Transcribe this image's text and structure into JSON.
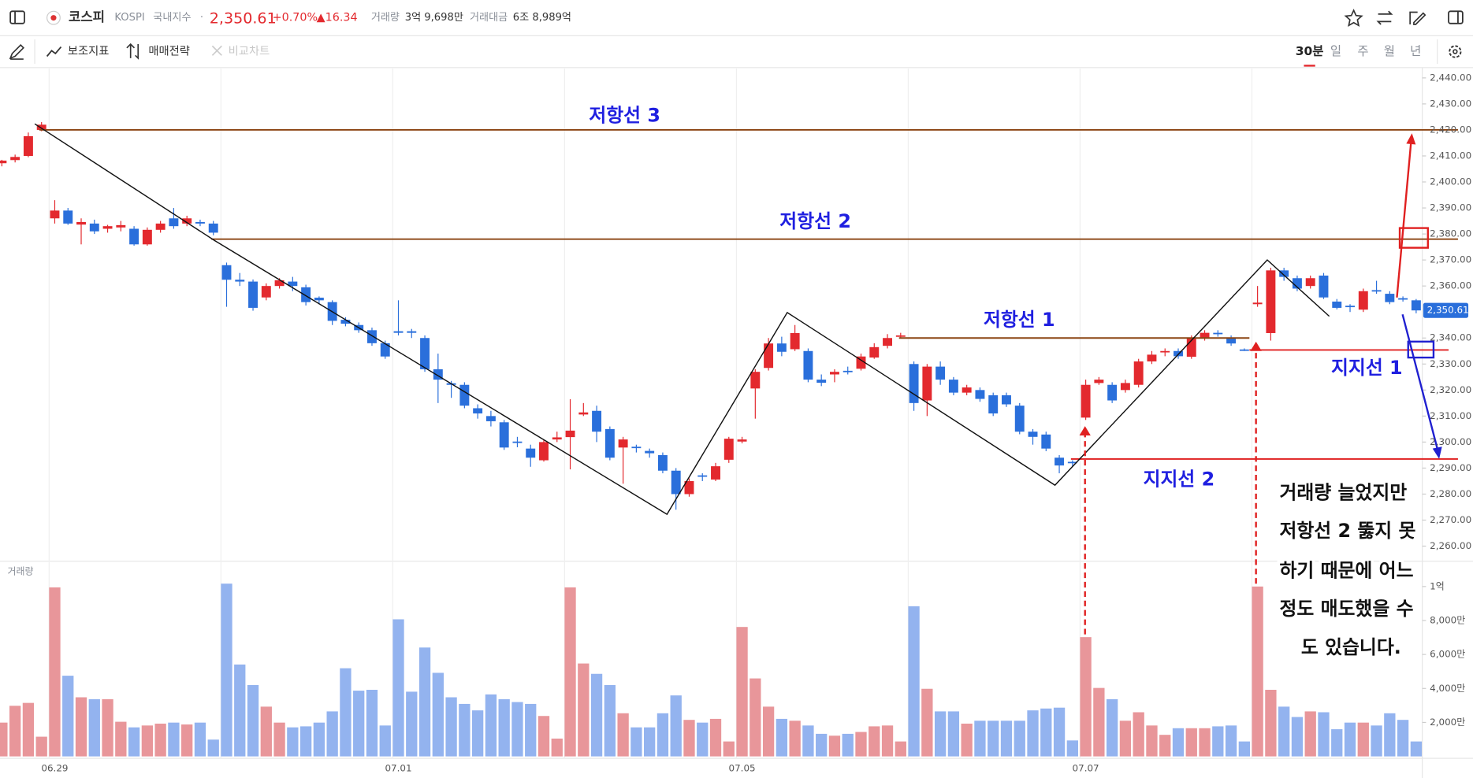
{
  "header": {
    "name": "코스피",
    "code": "KOSPI",
    "market": "국내지수",
    "separator": "·",
    "price": "2,350.61",
    "change_pct": "+0.70%",
    "change": "▲16.34",
    "volume_label": "거래량",
    "volume": "3억 9,698만",
    "amount_label": "거래대금",
    "amount": "6조 8,989억"
  },
  "toolbar": {
    "items": [
      "보조지표",
      "매매전략",
      "비교차트"
    ],
    "periods": [
      "30분",
      "일",
      "주",
      "월",
      "년"
    ]
  },
  "chart_data": {
    "type": "candlestick",
    "categories": [
      null,
      null,
      null,
      null,
      "06.29",
      null,
      null,
      null,
      null,
      null,
      null,
      null,
      null,
      null,
      null,
      null,
      null,
      null,
      null,
      null,
      null,
      null,
      null,
      null,
      null,
      null,
      null,
      null,
      null,
      null,
      "07.01",
      null,
      null,
      null,
      null,
      null,
      null,
      null,
      null,
      null,
      null,
      null,
      null,
      null,
      null,
      null,
      null,
      null,
      null,
      null,
      null,
      null,
      null,
      null,
      null,
      null,
      "07.05",
      null,
      null,
      null,
      null,
      null,
      null,
      null,
      null,
      null,
      null,
      null,
      null,
      null,
      null,
      null,
      null,
      null,
      null,
      null,
      null,
      null,
      null,
      null,
      null,
      null,
      "07.07",
      null,
      null,
      null,
      null,
      null,
      null,
      null,
      null,
      null,
      null,
      null,
      null,
      null,
      null,
      null,
      null,
      null,
      null,
      null,
      null,
      null,
      null,
      null,
      null,
      null
    ],
    "ohlc": [
      [
        2407.2,
        2408.5,
        2406,
        2408.2
      ],
      [
        2408.4,
        2410.5,
        2407.5,
        2409.6
      ],
      [
        2410,
        2419,
        2409.5,
        2417.6
      ],
      [
        2420,
        2423,
        2419.5,
        2422
      ],
      [
        2386,
        2393,
        2384,
        2389
      ],
      [
        2389,
        2390,
        2383.5,
        2384
      ],
      [
        2383.6,
        2386,
        2376,
        2384.6
      ],
      [
        2384,
        2385.5,
        2380,
        2381
      ],
      [
        2382,
        2383.5,
        2380.5,
        2383
      ],
      [
        2382.5,
        2385,
        2381,
        2383.4
      ],
      [
        2382,
        2383,
        2375.5,
        2376
      ],
      [
        2376,
        2382.5,
        2375.5,
        2381.6
      ],
      [
        2381.6,
        2385,
        2380.5,
        2384
      ],
      [
        2386,
        2390,
        2382,
        2383
      ],
      [
        2384,
        2387,
        2383,
        2386
      ],
      [
        2384.6,
        2385.5,
        2383,
        2384
      ],
      [
        2384,
        2385,
        2379.5,
        2380.5
      ],
      [
        2368,
        2369,
        2352,
        2362.4
      ],
      [
        2362.4,
        2365,
        2360,
        2361.7
      ],
      [
        2361.7,
        2362.5,
        2350.5,
        2351.6
      ],
      [
        2355.6,
        2361,
        2354.5,
        2360
      ],
      [
        2360,
        2363,
        2359,
        2362.2
      ],
      [
        2361.7,
        2363.5,
        2358,
        2360
      ],
      [
        2359.5,
        2360.5,
        2352.5,
        2353.8
      ],
      [
        2355.5,
        2356,
        2353,
        2354.5
      ],
      [
        2353.8,
        2354.5,
        2345,
        2346.6
      ],
      [
        2347,
        2348,
        2344.5,
        2345.5
      ],
      [
        2345,
        2346,
        2342,
        2343
      ],
      [
        2343,
        2344,
        2337,
        2338
      ],
      [
        2338,
        2339,
        2332,
        2332.9
      ],
      [
        2342.6,
        2354.5,
        2341,
        2342
      ],
      [
        2342.6,
        2343.5,
        2340,
        2342
      ],
      [
        2340,
        2341,
        2327,
        2328
      ],
      [
        2328,
        2334,
        2315,
        2324
      ],
      [
        2322.6,
        2323.5,
        2317,
        2322
      ],
      [
        2322,
        2323,
        2313,
        2314
      ],
      [
        2313,
        2314.5,
        2309,
        2311
      ],
      [
        2310,
        2312,
        2306,
        2308
      ],
      [
        2307.6,
        2308.5,
        2297,
        2297.9
      ],
      [
        2300.2,
        2302,
        2298,
        2299.7
      ],
      [
        2297.5,
        2299,
        2290.5,
        2294
      ],
      [
        2293,
        2301,
        2292.5,
        2300
      ],
      [
        2301,
        2304,
        2300,
        2301.8
      ],
      [
        2301.9,
        2316.5,
        2289.5,
        2304.4
      ],
      [
        2310.6,
        2315,
        2310,
        2311.4
      ],
      [
        2312,
        2314,
        2300,
        2304
      ],
      [
        2305,
        2306,
        2293,
        2294
      ],
      [
        2297.9,
        2302,
        2284,
        2301
      ],
      [
        2298.2,
        2299,
        2296,
        2297.7
      ],
      [
        2296.6,
        2297.5,
        2294,
        2295.7
      ],
      [
        2295,
        2296,
        2288,
        2289
      ],
      [
        2289,
        2290,
        2274,
        2280
      ],
      [
        2280,
        2286,
        2279,
        2285
      ],
      [
        2287.2,
        2288,
        2285,
        2286.7
      ],
      [
        2285.6,
        2292,
        2285,
        2290.7
      ],
      [
        2293.2,
        2302,
        2292,
        2301.3
      ],
      [
        2300.2,
        2302,
        2299.5,
        2301
      ],
      [
        2320.6,
        2328,
        2309,
        2327
      ],
      [
        2328.5,
        2340,
        2327.5,
        2337.9
      ],
      [
        2337.9,
        2340.5,
        2333,
        2334.7
      ],
      [
        2335.7,
        2345,
        2335,
        2341.9
      ],
      [
        2335,
        2336,
        2323,
        2324
      ],
      [
        2324,
        2326,
        2321.5,
        2322.8
      ],
      [
        2326,
        2328,
        2323,
        2327
      ],
      [
        2327.4,
        2329,
        2326,
        2327
      ],
      [
        2328.2,
        2334,
        2327.5,
        2332.9
      ],
      [
        2332.5,
        2338,
        2332,
        2336.5
      ],
      [
        2337,
        2341.5,
        2336,
        2340
      ],
      [
        2340.8,
        2342,
        2340,
        2341
      ],
      [
        2330,
        2331,
        2312,
        2315
      ],
      [
        2316,
        2330,
        2310,
        2329
      ],
      [
        2329,
        2331,
        2322,
        2324
      ],
      [
        2324,
        2325,
        2318,
        2319
      ],
      [
        2319,
        2322,
        2318,
        2321
      ],
      [
        2320,
        2321,
        2315.5,
        2316.6
      ],
      [
        2318,
        2319,
        2310,
        2311
      ],
      [
        2318,
        2319,
        2313.5,
        2314.5
      ],
      [
        2314,
        2315,
        2303,
        2304
      ],
      [
        2304,
        2305,
        2299,
        2302
      ],
      [
        2302.9,
        2304,
        2296.5,
        2297.5
      ],
      [
        2294,
        2295,
        2288,
        2291
      ],
      [
        2292.4,
        2293,
        2290.5,
        2292
      ],
      [
        2309.4,
        2324,
        2308.5,
        2322
      ],
      [
        2322.7,
        2325,
        2322,
        2324
      ],
      [
        2322,
        2323,
        2315,
        2316
      ],
      [
        2320,
        2324,
        2319,
        2322.7
      ],
      [
        2322,
        2332,
        2321,
        2331
      ],
      [
        2331,
        2335,
        2330,
        2333.6
      ],
      [
        2334.6,
        2336,
        2333,
        2335
      ],
      [
        2335,
        2336,
        2332,
        2333
      ],
      [
        2332.8,
        2341,
        2332,
        2340
      ],
      [
        2340,
        2343,
        2339,
        2342
      ],
      [
        2342,
        2343,
        2340.5,
        2341.5
      ],
      [
        2340,
        2341,
        2337,
        2337.9
      ],
      [
        2335.6,
        2336,
        2335,
        2335.2
      ],
      [
        2353,
        2360,
        2352,
        2353.6
      ],
      [
        2341.9,
        2367,
        2339,
        2366
      ],
      [
        2366,
        2367,
        2362,
        2363.5
      ],
      [
        2363,
        2364,
        2358,
        2359
      ],
      [
        2360,
        2364,
        2359,
        2363
      ],
      [
        2364,
        2365,
        2355,
        2355.6
      ],
      [
        2354,
        2355,
        2351,
        2351.6
      ],
      [
        2352.4,
        2353,
        2350,
        2352
      ],
      [
        2350.9,
        2359,
        2350,
        2358
      ],
      [
        2358.4,
        2362,
        2357,
        2358
      ],
      [
        2357,
        2358,
        2353,
        2353.8
      ],
      [
        2355.3,
        2356,
        2354,
        2355
      ],
      [
        2354.5,
        2355,
        2349.5,
        2350.61
      ]
    ],
    "up_color": "#e3292e",
    "down_color": "#2a6fdb",
    "ylim": [
      2254.2,
      2443.6
    ],
    "yticks": [
      {
        "value": 2440,
        "label": "2,440.00"
      },
      {
        "value": 2430,
        "label": "2,430.00"
      },
      {
        "value": 2420,
        "label": "2,420.00"
      },
      {
        "value": 2410,
        "label": "2,410.00"
      },
      {
        "value": 2400,
        "label": "2,400.00"
      },
      {
        "value": 2390,
        "label": "2,390.00"
      },
      {
        "value": 2380,
        "label": "2,380.00"
      },
      {
        "value": 2370,
        "label": "2,370.00"
      },
      {
        "value": 2360,
        "label": "2,360.00"
      },
      {
        "value": 2340,
        "label": "2,340.00"
      },
      {
        "value": 2330,
        "label": "2,330.00"
      },
      {
        "value": 2320,
        "label": "2,320.00"
      },
      {
        "value": 2310,
        "label": "2,310.00"
      },
      {
        "value": 2300,
        "label": "2,300.00"
      },
      {
        "value": 2290,
        "label": "2,290.00"
      },
      {
        "value": 2280,
        "label": "2,280.00"
      },
      {
        "value": 2270,
        "label": "2,270.00"
      },
      {
        "value": 2260,
        "label": "2,260.00"
      }
    ],
    "current_price": {
      "value": 2350.61,
      "label": "2,350.61",
      "color": "#2a6fdb"
    },
    "volume": {
      "label": "거래량",
      "up_color": "#e8969a",
      "down_color": "#93b3ef",
      "ylim": [
        0,
        11490
      ],
      "yticks": [
        {
          "value": 2000,
          "label": "2,000만"
        },
        {
          "value": 4000,
          "label": "4,000만"
        },
        {
          "value": 6000,
          "label": "6,000만"
        },
        {
          "value": 8000,
          "label": "8,000만"
        },
        {
          "value": 10000,
          "label": "1억"
        }
      ],
      "values": [
        1990,
        2980,
        3150,
        1160,
        9950,
        4750,
        3480,
        3370,
        3370,
        2040,
        1710,
        1820,
        1930,
        1990,
        1880,
        1990,
        990,
        10170,
        5410,
        4200,
        2930,
        1990,
        1710,
        1770,
        1990,
        2650,
        5190,
        3870,
        3920,
        1820,
        8070,
        3810,
        6410,
        4920,
        3480,
        3090,
        2710,
        3650,
        3370,
        3200,
        3090,
        2380,
        1050,
        9950,
        5470,
        4860,
        4200,
        2540,
        1710,
        1710,
        2540,
        3590,
        2150,
        1990,
        2210,
        880,
        7620,
        4590,
        2930,
        2210,
        2100,
        1820,
        1330,
        1220,
        1330,
        1440,
        1770,
        1820,
        880,
        8840,
        3980,
        2650,
        2650,
        1930,
        2100,
        2100,
        2100,
        2100,
        2710,
        2820,
        2870,
        940,
        7020,
        4030,
        3370,
        2100,
        2600,
        1820,
        1270,
        1660,
        1660,
        1660,
        1770,
        1820,
        880,
        10000,
        3920,
        2930,
        2320,
        2650,
        2600,
        1600,
        1990,
        1990,
        1820,
        2540,
        2150,
        880
      ]
    },
    "annotations": [
      {
        "label": "저항선 3",
        "value": 2420,
        "color": "#8b4513"
      },
      {
        "label": "저항선 2",
        "value": 2378,
        "color": "#8b4513"
      },
      {
        "label": "저항선 1",
        "value": 2340,
        "color": "#8b4513"
      },
      {
        "label": "지지선 1",
        "value": 2335.4,
        "color": "#e02020"
      },
      {
        "label": "지지선 2",
        "value": 2293.5,
        "color": "#e02020"
      }
    ]
  },
  "note": {
    "lines": [
      "거래량 늘었지만",
      "저항선 2 뚫지 못",
      "하기 때문에 어느",
      "정도 매도했을 수",
      "도 있습니다."
    ]
  }
}
